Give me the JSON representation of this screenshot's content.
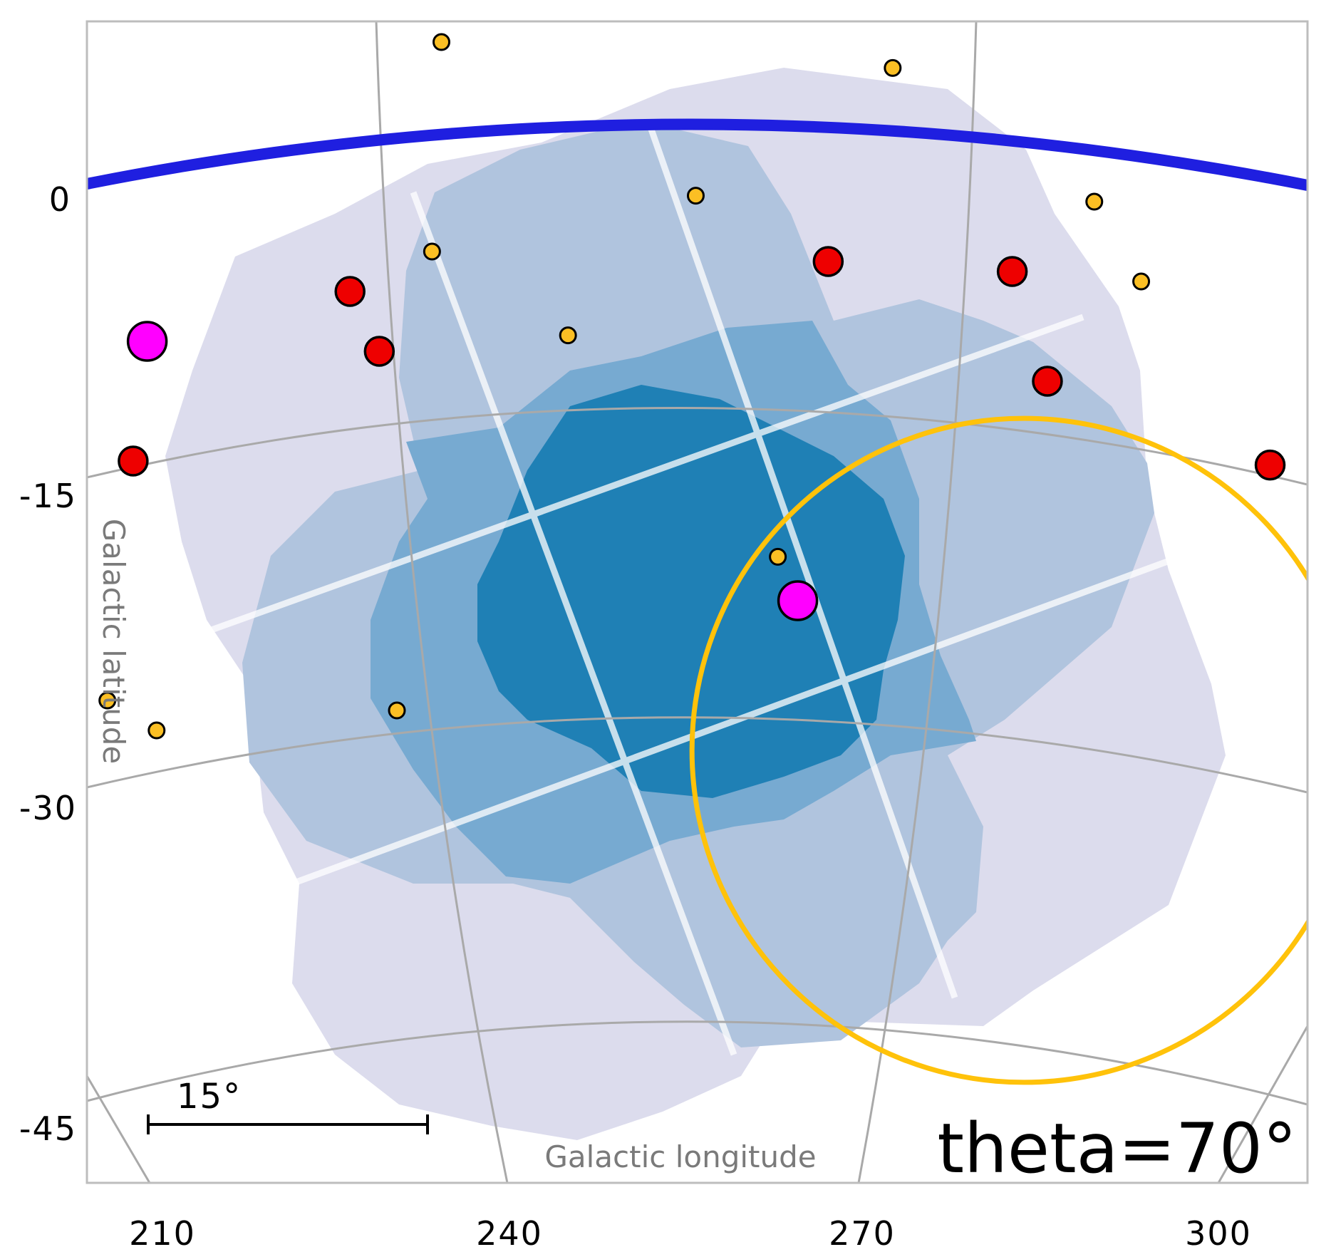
{
  "chart_data": {
    "type": "scatter",
    "title": "",
    "annotation": "theta=70°",
    "xlabel": "Galactic longitude",
    "ylabel": "Galactic latitude",
    "xticks": [
      "210",
      "240",
      "270",
      "300"
    ],
    "yticks": [
      "0",
      "-15",
      "-30",
      "-45"
    ],
    "xlim": [
      205,
      308
    ],
    "ylim": [
      -48,
      9
    ],
    "grid": true,
    "scale_bar": {
      "label": "15°",
      "length_deg": 15
    },
    "galactic_plane": {
      "color": "#1f1fe0"
    },
    "footprint": {
      "colors": {
        "depth1": "#dcdced",
        "depth2": "#b0c4de",
        "depth3": "#77aad1",
        "depth4": "#1f80b5"
      }
    },
    "circle": {
      "l": 283.5,
      "b": -27.5,
      "radius_deg": 13,
      "color": "#ffc20a"
    },
    "series": [
      {
        "color": "#ff00ff",
        "size": "large",
        "points": [
          {
            "l": 208.7,
            "b": -7.0
          },
          {
            "l": 264.2,
            "b": -20.0
          }
        ]
      },
      {
        "color": "#ee0000",
        "size": "medium",
        "points": [
          {
            "l": 226.0,
            "b": -4.5
          },
          {
            "l": 228.5,
            "b": -7.5
          },
          {
            "l": 207.5,
            "b": -13.0
          },
          {
            "l": 266.8,
            "b": -3.0
          },
          {
            "l": 282.5,
            "b": -3.5
          },
          {
            "l": 285.5,
            "b": -9.0
          },
          {
            "l": 304.5,
            "b": -13.2
          }
        ]
      },
      {
        "color": "#fbbf24",
        "size": "small",
        "points": [
          {
            "l": 233.8,
            "b": 8.0
          },
          {
            "l": 272.3,
            "b": 6.7
          },
          {
            "l": 255.5,
            "b": 0.3
          },
          {
            "l": 233.0,
            "b": -2.5
          },
          {
            "l": 244.6,
            "b": -6.7
          },
          {
            "l": 289.5,
            "b": 0.0
          },
          {
            "l": 293.5,
            "b": -4.0
          },
          {
            "l": 262.5,
            "b": -17.8
          },
          {
            "l": 230.0,
            "b": -25.5
          },
          {
            "l": 205.3,
            "b": -25.0
          },
          {
            "l": 209.5,
            "b": -26.5
          }
        ]
      }
    ]
  }
}
